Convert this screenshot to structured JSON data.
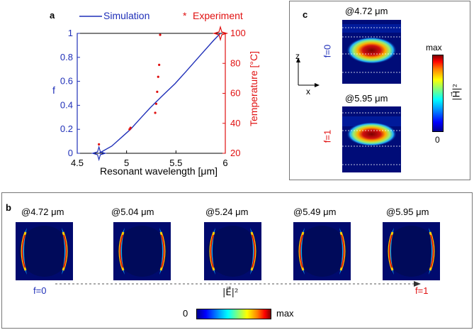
{
  "panel_a": {
    "letter": "a",
    "legend_sim": "Simulation",
    "legend_exp_marker": "*",
    "legend_exp": "Experiment",
    "colors": {
      "simulation": "#1f2fb8",
      "experiment": "#e01010"
    }
  },
  "chart_data": {
    "type": "line",
    "title": "",
    "xlabel": "Resonant wavelength [μm]",
    "ylabel": "f",
    "y2label": "Temperature [°C]",
    "xlim": [
      4.5,
      6
    ],
    "ylim": [
      0,
      1
    ],
    "y2lim": [
      20,
      100
    ],
    "x_ticks": [
      "4.5",
      "5",
      "5.5",
      "6"
    ],
    "y_ticks": [
      "0",
      "0.2",
      "0.4",
      "0.6",
      "0.8",
      "1"
    ],
    "y2_ticks": [
      "20",
      "40",
      "60",
      "80",
      "100"
    ],
    "series": [
      {
        "name": "Simulation",
        "axis": "left",
        "x": [
          4.72,
          4.85,
          5.04,
          5.15,
          5.24,
          5.35,
          5.49,
          5.6,
          5.75,
          5.88,
          5.95
        ],
        "y": [
          0.0,
          0.06,
          0.2,
          0.3,
          0.38,
          0.47,
          0.58,
          0.68,
          0.82,
          0.94,
          1.0
        ]
      },
      {
        "name": "Experiment",
        "axis": "right",
        "x": [
          4.72,
          5.03,
          5.04,
          5.29,
          5.3,
          5.31,
          5.32,
          5.33,
          5.34
        ],
        "y": [
          26,
          36,
          37,
          47,
          53,
          61,
          71,
          79,
          99
        ]
      }
    ]
  },
  "panel_b": {
    "letter": "b",
    "labels": [
      "@4.72 μm",
      "@5.04 μm",
      "@5.24 μm",
      "@5.49 μm",
      "@5.95 μm"
    ],
    "start_label": "f=0",
    "end_label": "f=1",
    "quantity_label": "|E⃗|²",
    "colorbar_min": "0",
    "colorbar_max": "max"
  },
  "panel_c": {
    "letter": "c",
    "top_label": "@4.72 μm",
    "bottom_label": "@5.95 μm",
    "top_state": "f=0",
    "bottom_state": "f=1",
    "axis_z": "z",
    "axis_x": "x",
    "quantity_label": "|H⃗|²",
    "colorbar_max": "max",
    "colorbar_min": "0"
  }
}
